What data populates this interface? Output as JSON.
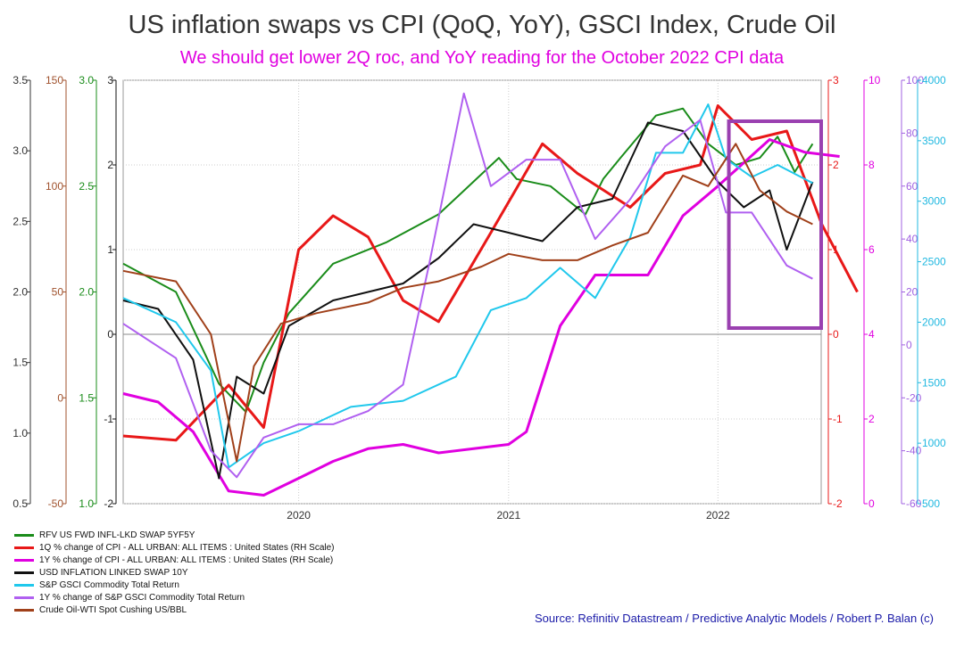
{
  "title": "US inflation swaps vs CPI (QoQ, YoY), GSCI Index, Crude Oil",
  "subtitle": "We should get lower 2Q roc, and YoY reading for the October 2022 CPI data",
  "source": "Source: Refinitiv Datastream / Predictive Analytic Models / Robert P. Balan (c)",
  "chart_data": {
    "type": "line",
    "x_ticks": [
      "2020",
      "2021",
      "2022"
    ],
    "x_range": [
      "2019-03-01",
      "2022-06-30"
    ],
    "axes": [
      {
        "id": "a1",
        "side": "left",
        "color": "#333333",
        "min": 0.5,
        "max": 3.5,
        "ticks": [
          "0.5",
          "1.0",
          "1.5",
          "2.0",
          "2.5",
          "3.0",
          "3.5"
        ]
      },
      {
        "id": "a2",
        "side": "left",
        "color": "#a0522d",
        "min": -50,
        "max": 150,
        "ticks": [
          "-50",
          "0",
          "50",
          "100",
          "150"
        ]
      },
      {
        "id": "a3",
        "side": "left",
        "color": "#1a8c1a",
        "min": 1.0,
        "max": 3.0,
        "ticks": [
          "1.0",
          "1.5",
          "2.0",
          "2.5",
          "3.0"
        ]
      },
      {
        "id": "a4",
        "side": "left",
        "color": "#111111",
        "min": -2,
        "max": 3,
        "ticks": [
          "-2",
          "-1",
          "0",
          "1",
          "2",
          "3"
        ]
      },
      {
        "id": "a5",
        "side": "right",
        "color": "#e81818",
        "min": -2,
        "max": 3,
        "ticks": [
          "-2",
          "-1",
          "0",
          "1",
          "2",
          "3"
        ]
      },
      {
        "id": "a6",
        "side": "right",
        "color": "#e000e0",
        "min": 0,
        "max": 10,
        "ticks": [
          "0",
          "2",
          "4",
          "6",
          "8",
          "10"
        ]
      },
      {
        "id": "a7",
        "side": "right",
        "color": "#a060e0",
        "min": -60,
        "max": 100,
        "ticks": [
          "-60",
          "-40",
          "-20",
          "0",
          "20",
          "40",
          "60",
          "80",
          "100"
        ]
      },
      {
        "id": "a8",
        "side": "right",
        "color": "#20b8e0",
        "min": 500,
        "max": 4000,
        "ticks": [
          "500",
          "1000",
          "1500",
          "2000",
          "2500",
          "3000",
          "3500",
          "4000"
        ]
      }
    ],
    "series": [
      {
        "name": "RFV US FWD INFL-LKD SWAP 5YF5Y",
        "color": "#1a8c1a",
        "axis": "a1",
        "width": 2,
        "points": [
          [
            "2019-03-01",
            2.2
          ],
          [
            "2019-06-01",
            2.0
          ],
          [
            "2019-08-15",
            1.35
          ],
          [
            "2019-10-01",
            1.15
          ],
          [
            "2019-11-01",
            1.5
          ],
          [
            "2019-12-15",
            1.85
          ],
          [
            "2020-03-01",
            2.2
          ],
          [
            "2020-06-01",
            2.35
          ],
          [
            "2020-09-01",
            2.55
          ],
          [
            "2020-12-15",
            2.95
          ],
          [
            "2021-01-15",
            2.8
          ],
          [
            "2021-03-15",
            2.75
          ],
          [
            "2021-05-15",
            2.55
          ],
          [
            "2021-06-15",
            2.8
          ],
          [
            "2021-07-15",
            2.95
          ],
          [
            "2021-09-15",
            3.25
          ],
          [
            "2021-11-01",
            3.3
          ],
          [
            "2021-12-15",
            3.05
          ],
          [
            "2022-02-01",
            2.9
          ],
          [
            "2022-03-15",
            2.95
          ],
          [
            "2022-04-15",
            3.1
          ],
          [
            "2022-05-15",
            2.85
          ],
          [
            "2022-06-15",
            3.05
          ]
        ]
      },
      {
        "name": "1Q % change of CPI - ALL URBAN: ALL ITEMS : United States (RH Scale)",
        "color": "#e81818",
        "axis": "a5",
        "width": 3,
        "points": [
          [
            "2019-03-01",
            -1.2
          ],
          [
            "2019-06-01",
            -1.25
          ],
          [
            "2019-09-01",
            -0.6
          ],
          [
            "2019-11-01",
            -1.1
          ],
          [
            "2020-01-01",
            1.0
          ],
          [
            "2020-03-01",
            1.4
          ],
          [
            "2020-05-01",
            1.15
          ],
          [
            "2020-07-01",
            0.4
          ],
          [
            "2020-09-01",
            0.15
          ],
          [
            "2020-12-01",
            1.2
          ],
          [
            "2021-03-01",
            2.25
          ],
          [
            "2021-05-01",
            1.9
          ],
          [
            "2021-08-01",
            1.5
          ],
          [
            "2021-10-01",
            1.9
          ],
          [
            "2021-12-01",
            2.0
          ],
          [
            "2022-01-01",
            2.7
          ],
          [
            "2022-03-01",
            2.3
          ],
          [
            "2022-05-01",
            2.4
          ],
          [
            "2022-07-01",
            1.3
          ],
          [
            "2022-09-01",
            0.5
          ]
        ]
      },
      {
        "name": "1Y % change of CPI - ALL URBAN: ALL ITEMS : United States (RH Scale)",
        "color": "#e000e0",
        "axis": "a6",
        "width": 3,
        "points": [
          [
            "2019-03-01",
            2.6
          ],
          [
            "2019-05-01",
            2.4
          ],
          [
            "2019-07-01",
            1.7
          ],
          [
            "2019-09-01",
            0.3
          ],
          [
            "2019-11-01",
            0.2
          ],
          [
            "2020-01-01",
            0.6
          ],
          [
            "2020-03-01",
            1.0
          ],
          [
            "2020-05-01",
            1.3
          ],
          [
            "2020-07-01",
            1.4
          ],
          [
            "2020-09-01",
            1.2
          ],
          [
            "2020-11-01",
            1.3
          ],
          [
            "2021-01-01",
            1.4
          ],
          [
            "2021-02-01",
            1.7
          ],
          [
            "2021-04-01",
            4.2
          ],
          [
            "2021-06-01",
            5.4
          ],
          [
            "2021-09-01",
            5.4
          ],
          [
            "2021-11-01",
            6.8
          ],
          [
            "2022-01-01",
            7.5
          ],
          [
            "2022-04-01",
            8.6
          ],
          [
            "2022-06-01",
            8.3
          ],
          [
            "2022-08-01",
            8.2
          ]
        ]
      },
      {
        "name": "USD INFLATION LINKED SWAP 10Y",
        "color": "#111111",
        "axis": "a4",
        "width": 2,
        "points": [
          [
            "2019-03-01",
            0.4
          ],
          [
            "2019-05-01",
            0.3
          ],
          [
            "2019-07-01",
            -0.3
          ],
          [
            "2019-08-15",
            -1.7
          ],
          [
            "2019-09-15",
            -0.5
          ],
          [
            "2019-11-01",
            -0.7
          ],
          [
            "2019-12-15",
            0.1
          ],
          [
            "2020-03-01",
            0.4
          ],
          [
            "2020-05-01",
            0.5
          ],
          [
            "2020-07-01",
            0.6
          ],
          [
            "2020-09-01",
            0.9
          ],
          [
            "2020-11-01",
            1.3
          ],
          [
            "2021-01-01",
            1.2
          ],
          [
            "2021-03-01",
            1.1
          ],
          [
            "2021-05-01",
            1.5
          ],
          [
            "2021-07-01",
            1.6
          ],
          [
            "2021-09-01",
            2.5
          ],
          [
            "2021-11-01",
            2.4
          ],
          [
            "2022-01-01",
            1.8
          ],
          [
            "2022-02-15",
            1.5
          ],
          [
            "2022-04-01",
            1.7
          ],
          [
            "2022-05-01",
            1.0
          ],
          [
            "2022-06-15",
            1.8
          ]
        ]
      },
      {
        "name": "S&P GSCI Commodity Total Return",
        "color": "#20c8ec",
        "axis": "a8",
        "width": 2,
        "points": [
          [
            "2019-03-01",
            2200
          ],
          [
            "2019-06-01",
            2000
          ],
          [
            "2019-08-01",
            1600
          ],
          [
            "2019-09-01",
            800
          ],
          [
            "2019-11-01",
            1000
          ],
          [
            "2020-01-01",
            1100
          ],
          [
            "2020-04-01",
            1300
          ],
          [
            "2020-07-01",
            1350
          ],
          [
            "2020-10-01",
            1550
          ],
          [
            "2020-12-01",
            2100
          ],
          [
            "2021-02-01",
            2200
          ],
          [
            "2021-04-01",
            2450
          ],
          [
            "2021-06-01",
            2200
          ],
          [
            "2021-08-01",
            2700
          ],
          [
            "2021-09-15",
            3400
          ],
          [
            "2021-11-01",
            3400
          ],
          [
            "2021-12-15",
            3800
          ],
          [
            "2022-01-15",
            3350
          ],
          [
            "2022-03-01",
            3200
          ],
          [
            "2022-04-15",
            3300
          ],
          [
            "2022-06-15",
            3150
          ]
        ]
      },
      {
        "name": "1Y % change of S&P GSCI Commodity Total Return",
        "color": "#b060f0",
        "axis": "a7",
        "width": 2,
        "points": [
          [
            "2019-03-01",
            8
          ],
          [
            "2019-06-01",
            -5
          ],
          [
            "2019-08-01",
            -40
          ],
          [
            "2019-09-15",
            -50
          ],
          [
            "2019-11-01",
            -35
          ],
          [
            "2020-01-01",
            -30
          ],
          [
            "2020-03-01",
            -30
          ],
          [
            "2020-05-01",
            -25
          ],
          [
            "2020-07-01",
            -15
          ],
          [
            "2020-08-15",
            30
          ],
          [
            "2020-10-15",
            95
          ],
          [
            "2020-12-01",
            60
          ],
          [
            "2021-02-01",
            70
          ],
          [
            "2021-04-01",
            70
          ],
          [
            "2021-06-01",
            40
          ],
          [
            "2021-08-01",
            55
          ],
          [
            "2021-10-01",
            75
          ],
          [
            "2021-12-01",
            85
          ],
          [
            "2022-01-15",
            50
          ],
          [
            "2022-03-01",
            50
          ],
          [
            "2022-05-01",
            30
          ],
          [
            "2022-06-15",
            25
          ]
        ]
      },
      {
        "name": "Crude Oil-WTI Spot Cushing US/BBL",
        "color": "#a0401a",
        "axis": "a2",
        "width": 2,
        "points": [
          [
            "2019-03-01",
            60
          ],
          [
            "2019-06-01",
            55
          ],
          [
            "2019-08-01",
            30
          ],
          [
            "2019-09-15",
            -30
          ],
          [
            "2019-10-15",
            15
          ],
          [
            "2019-12-01",
            35
          ],
          [
            "2020-02-01",
            40
          ],
          [
            "2020-05-01",
            45
          ],
          [
            "2020-07-01",
            52
          ],
          [
            "2020-09-01",
            55
          ],
          [
            "2020-11-15",
            62
          ],
          [
            "2021-01-01",
            68
          ],
          [
            "2021-03-01",
            65
          ],
          [
            "2021-05-01",
            65
          ],
          [
            "2021-07-01",
            72
          ],
          [
            "2021-09-01",
            78
          ],
          [
            "2021-11-01",
            105
          ],
          [
            "2021-12-15",
            100
          ],
          [
            "2022-02-01",
            120
          ],
          [
            "2022-03-15",
            98
          ],
          [
            "2022-05-01",
            88
          ],
          [
            "2022-06-15",
            82
          ]
        ]
      }
    ],
    "annotation": {
      "label": "highlight box",
      "x_range": [
        "2022-01-20",
        "2022-06-30"
      ],
      "color": "#9a40b0"
    }
  }
}
